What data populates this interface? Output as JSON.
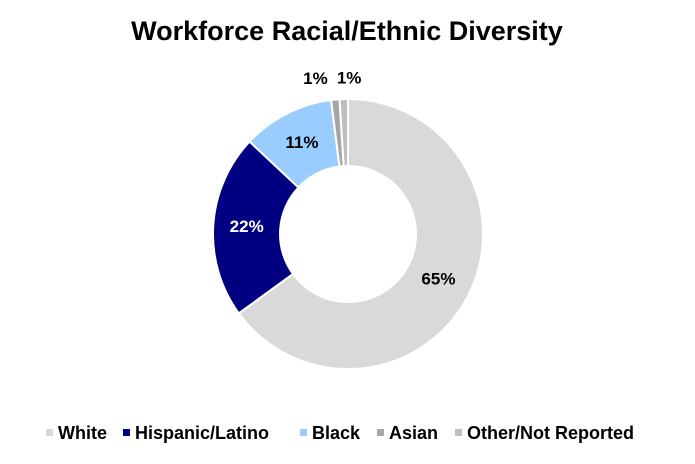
{
  "chart_data": {
    "type": "donut",
    "title": "Workforce Racial/Ethnic Diversity",
    "categories": [
      "White",
      "Hispanic/Latino",
      "Black",
      "Asian",
      "Other/Not Reported"
    ],
    "values": [
      65,
      22,
      11,
      1,
      1
    ],
    "value_labels": [
      "65%",
      "22%",
      "11%",
      "1%",
      "1%"
    ],
    "colors": [
      "#d9d9d9",
      "#000080",
      "#99ccff",
      "#a6a6a6",
      "#bfbfbf"
    ],
    "legend": "bottom"
  }
}
